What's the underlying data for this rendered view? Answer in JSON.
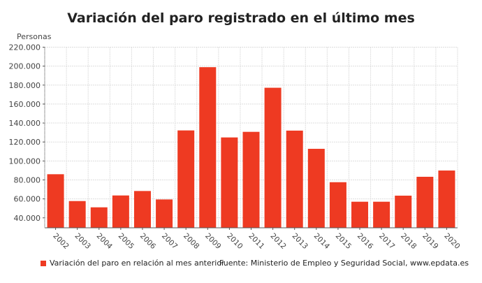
{
  "chart_data": {
    "type": "bar",
    "title": "Variación del paro registrado en el último mes",
    "ylabel": "Personas",
    "xlabel": "",
    "categories": [
      "2002",
      "2003",
      "2004",
      "2005",
      "2006",
      "2007",
      "2008",
      "2009",
      "2010",
      "2011",
      "2012",
      "2013",
      "2014",
      "2015",
      "2016",
      "2017",
      "2018",
      "2019",
      "2020"
    ],
    "series": [
      {
        "name": "Variación del paro en relación al mes anterior",
        "values": [
          86000,
          57700,
          51100,
          63600,
          68300,
          59400,
          132200,
          198900,
          124800,
          130700,
          177200,
          132000,
          112800,
          77600,
          57000,
          57000,
          63400,
          83300,
          89900
        ]
      }
    ],
    "yticks": [
      "40.000",
      "60.000",
      "80.000",
      "100.000",
      "120.000",
      "140.000",
      "160.000",
      "180.000",
      "200.000",
      "220.000"
    ],
    "ylim": [
      29500,
      220000
    ],
    "grid": true,
    "legend": "bottom-left",
    "bar_color": "#ee3a22",
    "source": "Fuente: Ministerio de Empleo y Seguridad Social, www.epdata.es"
  }
}
